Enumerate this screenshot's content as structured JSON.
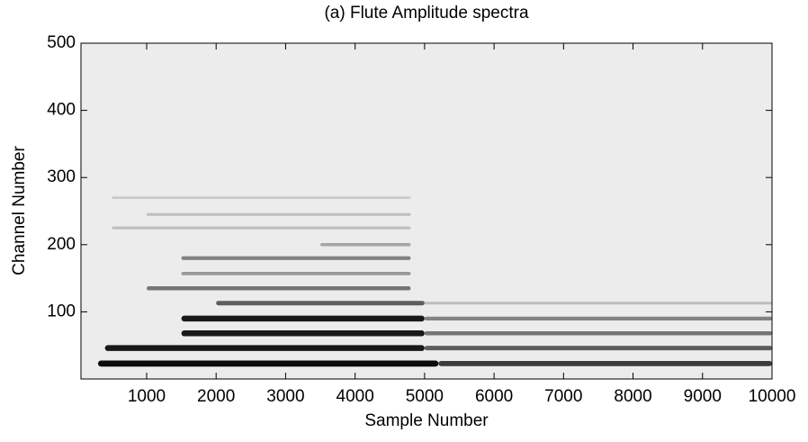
{
  "chart_data": {
    "type": "heatmap",
    "title": "(a) Flute Amplitude spectra",
    "x_label": "Sample Number",
    "y_label": "Channel Number",
    "xlim": [
      55,
      10000
    ],
    "ylim": [
      0,
      500
    ],
    "xticks": [
      1000,
      2000,
      3000,
      4000,
      5000,
      6000,
      7000,
      8000,
      9000,
      10000
    ],
    "yticks": [
      100,
      200,
      300,
      400,
      500
    ],
    "background": "#ececec",
    "bands": [
      {
        "channel": 23,
        "xrange": [
          300,
          5200
        ],
        "level": 0.95
      },
      {
        "channel": 23,
        "xrange": [
          5200,
          10000
        ],
        "level": 0.75
      },
      {
        "channel": 46,
        "xrange": [
          400,
          5000
        ],
        "level": 0.9
      },
      {
        "channel": 46,
        "xrange": [
          5000,
          10000
        ],
        "level": 0.6
      },
      {
        "channel": 68,
        "xrange": [
          1500,
          5000
        ],
        "level": 0.9
      },
      {
        "channel": 68,
        "xrange": [
          5000,
          10000
        ],
        "level": 0.5
      },
      {
        "channel": 90,
        "xrange": [
          1500,
          5000
        ],
        "level": 0.9
      },
      {
        "channel": 90,
        "xrange": [
          5000,
          10000
        ],
        "level": 0.45
      },
      {
        "channel": 113,
        "xrange": [
          2000,
          5000
        ],
        "level": 0.6
      },
      {
        "channel": 113,
        "xrange": [
          5000,
          10000
        ],
        "level": 0.2
      },
      {
        "channel": 135,
        "xrange": [
          1000,
          4800
        ],
        "level": 0.5
      },
      {
        "channel": 157,
        "xrange": [
          1500,
          4800
        ],
        "level": 0.35
      },
      {
        "channel": 180,
        "xrange": [
          1500,
          4800
        ],
        "level": 0.45
      },
      {
        "channel": 200,
        "xrange": [
          3500,
          4800
        ],
        "level": 0.3
      },
      {
        "channel": 225,
        "xrange": [
          500,
          4800
        ],
        "level": 0.2
      },
      {
        "channel": 245,
        "xrange": [
          1000,
          4800
        ],
        "level": 0.2
      },
      {
        "channel": 270,
        "xrange": [
          500,
          4800
        ],
        "level": 0.15
      }
    ]
  }
}
